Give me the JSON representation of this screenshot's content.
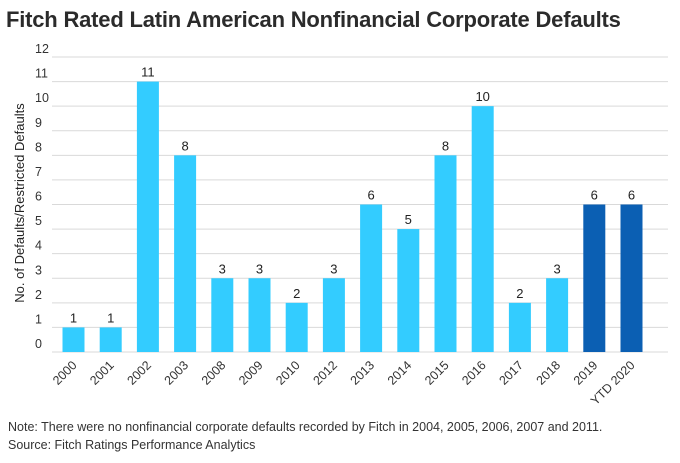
{
  "chart_data": {
    "type": "bar",
    "title": "Fitch Rated Latin American Nonfinancial Corporate Defaults",
    "xlabel": "",
    "ylabel": "No. of Defaults/Restricted Defaults",
    "ylim": [
      0,
      12
    ],
    "yticks": [
      0,
      1,
      2,
      3,
      4,
      5,
      6,
      7,
      8,
      9,
      10,
      11,
      12
    ],
    "categories": [
      "2000",
      "2001",
      "2002",
      "2003",
      "2008",
      "2009",
      "2010",
      "2012",
      "2013",
      "2014",
      "2015",
      "2016",
      "2017",
      "2018",
      "2019",
      "YTD 2020"
    ],
    "values": [
      1,
      1,
      11,
      8,
      3,
      3,
      2,
      3,
      6,
      5,
      8,
      10,
      2,
      3,
      6,
      6
    ],
    "bar_colors": [
      "#33ccff",
      "#33ccff",
      "#33ccff",
      "#33ccff",
      "#33ccff",
      "#33ccff",
      "#33ccff",
      "#33ccff",
      "#33ccff",
      "#33ccff",
      "#33ccff",
      "#33ccff",
      "#33ccff",
      "#33ccff",
      "#0b5fb3",
      "#0b5fb3"
    ],
    "grid": true,
    "gridline_color": "#d9d9d9",
    "data_labels": true
  },
  "footer": {
    "note": "Note: There were no nonfinancial corporate defaults recorded by Fitch in 2004, 2005, 2006, 2007 and 2011.",
    "source": "Source:  Fitch Ratings Performance Analytics"
  }
}
